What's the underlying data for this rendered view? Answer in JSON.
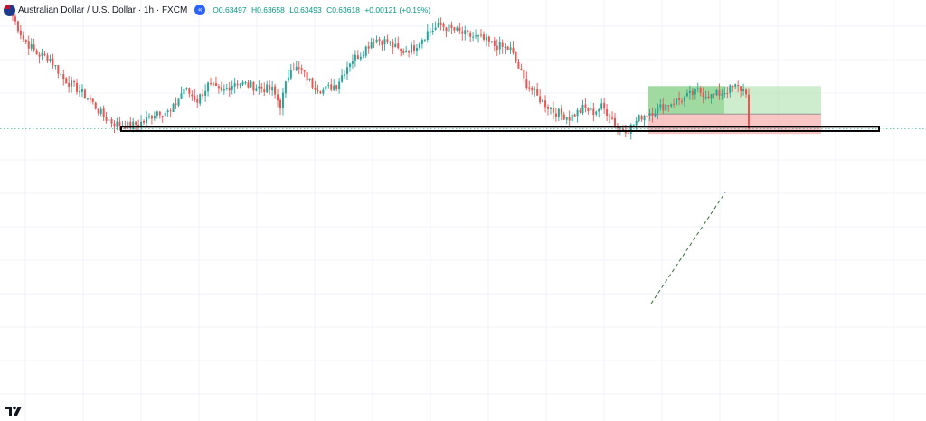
{
  "header": {
    "symbol": "Australian Dollar / U.S. Dollar · 1h · FXCM",
    "open": "O0.63497",
    "high": "H0.63658",
    "low": "L0.63493",
    "close": "C0.63618",
    "change": "+0.00121 (+0.19%)",
    "rewind_icon": "replay-rewind-icon",
    "flag_icon": "aud-usd-flag-icon"
  },
  "colors": {
    "up": "#26a69a",
    "down": "#ef5350",
    "ohlc_text": "#089981",
    "accent": "#2962ff",
    "profit_zone": "#7ccc7c",
    "loss_zone": "#f6a8a8",
    "grid": "#f0f3fa",
    "price_line": "#26a69a"
  },
  "chart_data": {
    "type": "candlestick",
    "timeframe": "1h",
    "grid": true,
    "ohlc_last": {
      "open": 0.63497,
      "high": 0.63658,
      "low": 0.63493,
      "close": 0.63618
    },
    "change": 0.00121,
    "change_pct": 0.19,
    "current_price": 0.63618,
    "close_path": [
      [
        0,
        0.6497
      ],
      [
        4,
        0.647
      ],
      [
        9,
        0.6452
      ],
      [
        14,
        0.6446
      ],
      [
        19,
        0.6422
      ],
      [
        24,
        0.641
      ],
      [
        29,
        0.6396
      ],
      [
        34,
        0.6376
      ],
      [
        38,
        0.6368
      ],
      [
        44,
        0.6365
      ],
      [
        49,
        0.637
      ],
      [
        54,
        0.6383
      ],
      [
        59,
        0.6381
      ],
      [
        64,
        0.641
      ],
      [
        69,
        0.6396
      ],
      [
        73,
        0.6414
      ],
      [
        78,
        0.6405
      ],
      [
        83,
        0.6418
      ],
      [
        88,
        0.6414
      ],
      [
        93,
        0.6411
      ],
      [
        97,
        0.6408
      ],
      [
        100,
        0.639
      ],
      [
        104,
        0.6438
      ],
      [
        108,
        0.643
      ],
      [
        112,
        0.6415
      ],
      [
        116,
        0.6408
      ],
      [
        121,
        0.6415
      ],
      [
        126,
        0.6443
      ],
      [
        130,
        0.6452
      ],
      [
        135,
        0.647
      ],
      [
        140,
        0.6466
      ],
      [
        145,
        0.6454
      ],
      [
        150,
        0.646
      ],
      [
        155,
        0.6478
      ],
      [
        160,
        0.6486
      ],
      [
        165,
        0.648
      ],
      [
        170,
        0.6474
      ],
      [
        175,
        0.647
      ],
      [
        180,
        0.6462
      ],
      [
        186,
        0.6457
      ],
      [
        191,
        0.642
      ],
      [
        196,
        0.64
      ],
      [
        202,
        0.6383
      ],
      [
        208,
        0.6375
      ],
      [
        213,
        0.6386
      ],
      [
        217,
        0.6382
      ],
      [
        220,
        0.6388
      ],
      [
        223,
        0.6379
      ],
      [
        226,
        0.6363
      ],
      [
        230,
        0.6361
      ],
      [
        235,
        0.6377
      ],
      [
        240,
        0.6384
      ],
      [
        245,
        0.6392
      ],
      [
        250,
        0.6397
      ],
      [
        256,
        0.6407
      ],
      [
        261,
        0.6401
      ],
      [
        265,
        0.6405
      ],
      [
        270,
        0.6412
      ],
      [
        275,
        0.6406
      ]
    ],
    "range_box": {
      "low": 0.6359,
      "high": 0.6364
    },
    "long_position": {
      "entry": 0.63794,
      "target": 0.6413,
      "stop": 0.63555
    }
  }
}
